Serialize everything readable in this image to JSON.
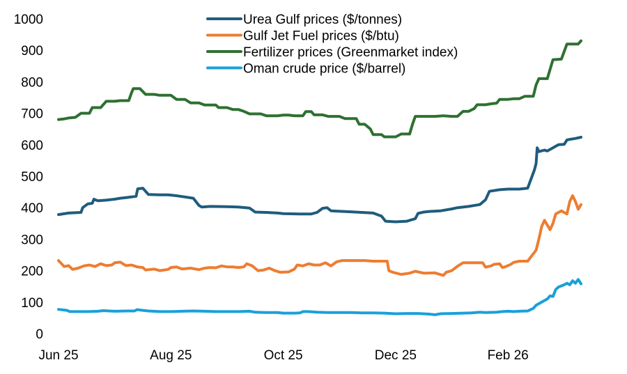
{
  "chart_data": {
    "type": "line",
    "title": "",
    "xlabel": "",
    "ylabel": "",
    "ylim": [
      0,
      1000
    ],
    "yticks": [
      0,
      100,
      200,
      300,
      400,
      500,
      600,
      700,
      800,
      900,
      1000
    ],
    "xlim_months": [
      0,
      9.3
    ],
    "xticks": [
      {
        "label": "Jun 25",
        "month": 0
      },
      {
        "label": "Aug 25",
        "month": 2
      },
      {
        "label": "Oct 25",
        "month": 4
      },
      {
        "label": "Dec 25",
        "month": 6
      },
      {
        "label": "Feb 26",
        "month": 8
      }
    ],
    "legend_position": "top-center",
    "series": [
      {
        "name": "Urea Gulf prices ($/tonnes)",
        "color": "#1f5c7d",
        "points": [
          [
            0,
            378
          ],
          [
            0.18,
            383
          ],
          [
            0.4,
            385
          ],
          [
            0.43,
            400
          ],
          [
            0.52,
            412
          ],
          [
            0.6,
            414
          ],
          [
            0.63,
            427
          ],
          [
            0.7,
            422
          ],
          [
            0.85,
            424
          ],
          [
            1.0,
            427
          ],
          [
            1.1,
            430
          ],
          [
            1.2,
            432
          ],
          [
            1.38,
            436
          ],
          [
            1.41,
            460
          ],
          [
            1.5,
            462
          ],
          [
            1.6,
            442
          ],
          [
            1.8,
            441
          ],
          [
            1.95,
            441
          ],
          [
            2.1,
            438
          ],
          [
            2.25,
            434
          ],
          [
            2.4,
            430
          ],
          [
            2.5,
            407
          ],
          [
            2.55,
            402
          ],
          [
            2.7,
            404
          ],
          [
            3.0,
            403
          ],
          [
            3.2,
            402
          ],
          [
            3.4,
            399
          ],
          [
            3.5,
            386
          ],
          [
            3.7,
            385
          ],
          [
            3.9,
            383
          ],
          [
            4.0,
            381
          ],
          [
            4.3,
            380
          ],
          [
            4.5,
            380
          ],
          [
            4.6,
            385
          ],
          [
            4.7,
            398
          ],
          [
            4.78,
            400
          ],
          [
            4.85,
            390
          ],
          [
            5.2,
            387
          ],
          [
            5.4,
            385
          ],
          [
            5.6,
            383
          ],
          [
            5.75,
            373
          ],
          [
            5.82,
            357
          ],
          [
            6.0,
            355
          ],
          [
            6.2,
            357
          ],
          [
            6.35,
            365
          ],
          [
            6.4,
            382
          ],
          [
            6.5,
            386
          ],
          [
            6.6,
            388
          ],
          [
            6.8,
            390
          ],
          [
            7.0,
            396
          ],
          [
            7.1,
            400
          ],
          [
            7.3,
            404
          ],
          [
            7.5,
            410
          ],
          [
            7.6,
            425
          ],
          [
            7.67,
            452
          ],
          [
            7.85,
            457
          ],
          [
            8.0,
            459
          ],
          [
            8.2,
            459
          ],
          [
            8.35,
            462
          ],
          [
            8.47,
            520
          ],
          [
            8.5,
            540
          ],
          [
            8.52,
            590
          ],
          [
            8.55,
            578
          ],
          [
            8.65,
            583
          ],
          [
            8.7,
            580
          ],
          [
            8.8,
            590
          ],
          [
            8.9,
            600
          ],
          [
            9.0,
            601
          ],
          [
            9.05,
            615
          ],
          [
            9.1,
            617
          ],
          [
            9.2,
            620
          ],
          [
            9.3,
            624
          ]
        ]
      },
      {
        "name": "Gulf Jet Fuel prices ($/btu)",
        "color": "#ed7d31",
        "points": [
          [
            0,
            232
          ],
          [
            0.1,
            213
          ],
          [
            0.18,
            216
          ],
          [
            0.25,
            204
          ],
          [
            0.35,
            208
          ],
          [
            0.45,
            215
          ],
          [
            0.55,
            218
          ],
          [
            0.65,
            213
          ],
          [
            0.75,
            222
          ],
          [
            0.85,
            216
          ],
          [
            0.95,
            218
          ],
          [
            1.0,
            225
          ],
          [
            1.1,
            227
          ],
          [
            1.2,
            216
          ],
          [
            1.3,
            218
          ],
          [
            1.4,
            212
          ],
          [
            1.5,
            210
          ],
          [
            1.55,
            202
          ],
          [
            1.7,
            205
          ],
          [
            1.8,
            200
          ],
          [
            1.95,
            204
          ],
          [
            2.0,
            210
          ],
          [
            2.1,
            212
          ],
          [
            2.2,
            205
          ],
          [
            2.35,
            208
          ],
          [
            2.5,
            203
          ],
          [
            2.6,
            208
          ],
          [
            2.7,
            210
          ],
          [
            2.8,
            209
          ],
          [
            2.9,
            215
          ],
          [
            3.0,
            212
          ],
          [
            3.1,
            212
          ],
          [
            3.2,
            210
          ],
          [
            3.3,
            212
          ],
          [
            3.35,
            222
          ],
          [
            3.45,
            215
          ],
          [
            3.55,
            200
          ],
          [
            3.65,
            202
          ],
          [
            3.75,
            208
          ],
          [
            3.85,
            200
          ],
          [
            3.95,
            195
          ],
          [
            4.1,
            196
          ],
          [
            4.2,
            205
          ],
          [
            4.25,
            218
          ],
          [
            4.35,
            215
          ],
          [
            4.45,
            222
          ],
          [
            4.55,
            218
          ],
          [
            4.65,
            218
          ],
          [
            4.75,
            225
          ],
          [
            4.85,
            215
          ],
          [
            4.95,
            228
          ],
          [
            5.05,
            232
          ],
          [
            5.2,
            232
          ],
          [
            5.45,
            232
          ],
          [
            5.6,
            230
          ],
          [
            5.85,
            230
          ],
          [
            5.88,
            200
          ],
          [
            5.95,
            195
          ],
          [
            6.1,
            188
          ],
          [
            6.25,
            192
          ],
          [
            6.35,
            198
          ],
          [
            6.5,
            192
          ],
          [
            6.7,
            193
          ],
          [
            6.85,
            185
          ],
          [
            6.9,
            195
          ],
          [
            7.0,
            200
          ],
          [
            7.1,
            214
          ],
          [
            7.2,
            225
          ],
          [
            7.4,
            225
          ],
          [
            7.55,
            225
          ],
          [
            7.6,
            211
          ],
          [
            7.7,
            215
          ],
          [
            7.75,
            220
          ],
          [
            7.85,
            222
          ],
          [
            7.9,
            210
          ],
          [
            7.95,
            212
          ],
          [
            8.05,
            220
          ],
          [
            8.1,
            226
          ],
          [
            8.2,
            230
          ],
          [
            8.35,
            230
          ],
          [
            8.5,
            265
          ],
          [
            8.55,
            300
          ],
          [
            8.6,
            340
          ],
          [
            8.65,
            360
          ],
          [
            8.7,
            345
          ],
          [
            8.75,
            330
          ],
          [
            8.8,
            350
          ],
          [
            8.85,
            380
          ],
          [
            8.95,
            390
          ],
          [
            9.05,
            380
          ],
          [
            9.1,
            420
          ],
          [
            9.15,
            438
          ],
          [
            9.2,
            420
          ],
          [
            9.25,
            395
          ],
          [
            9.3,
            410
          ]
        ]
      },
      {
        "name": "Fertilizer prices (Greenmarket index)",
        "color": "#2e7031",
        "points": [
          [
            0,
            680
          ],
          [
            0.1,
            682
          ],
          [
            0.18,
            685
          ],
          [
            0.3,
            687
          ],
          [
            0.4,
            700
          ],
          [
            0.55,
            700
          ],
          [
            0.6,
            718
          ],
          [
            0.75,
            718
          ],
          [
            0.85,
            738
          ],
          [
            1.0,
            738
          ],
          [
            1.1,
            740
          ],
          [
            1.25,
            740
          ],
          [
            1.3,
            765
          ],
          [
            1.33,
            778
          ],
          [
            1.45,
            778
          ],
          [
            1.55,
            760
          ],
          [
            1.7,
            760
          ],
          [
            1.8,
            757
          ],
          [
            2.0,
            757
          ],
          [
            2.1,
            744
          ],
          [
            2.25,
            744
          ],
          [
            2.35,
            733
          ],
          [
            2.5,
            733
          ],
          [
            2.6,
            726
          ],
          [
            2.8,
            726
          ],
          [
            2.85,
            718
          ],
          [
            3.0,
            718
          ],
          [
            3.1,
            712
          ],
          [
            3.2,
            712
          ],
          [
            3.3,
            706
          ],
          [
            3.4,
            698
          ],
          [
            3.6,
            698
          ],
          [
            3.7,
            692
          ],
          [
            3.9,
            692
          ],
          [
            4.0,
            694
          ],
          [
            4.1,
            694
          ],
          [
            4.2,
            692
          ],
          [
            4.35,
            692
          ],
          [
            4.4,
            705
          ],
          [
            4.5,
            705
          ],
          [
            4.55,
            695
          ],
          [
            4.7,
            695
          ],
          [
            4.8,
            690
          ],
          [
            5.0,
            690
          ],
          [
            5.1,
            683
          ],
          [
            5.3,
            683
          ],
          [
            5.35,
            665
          ],
          [
            5.45,
            665
          ],
          [
            5.55,
            650
          ],
          [
            5.6,
            632
          ],
          [
            5.75,
            632
          ],
          [
            5.8,
            625
          ],
          [
            6.0,
            625
          ],
          [
            6.1,
            634
          ],
          [
            6.25,
            634
          ],
          [
            6.3,
            665
          ],
          [
            6.35,
            690
          ],
          [
            6.5,
            690
          ],
          [
            6.7,
            690
          ],
          [
            6.85,
            692
          ],
          [
            7.0,
            690
          ],
          [
            7.1,
            690
          ],
          [
            7.2,
            706
          ],
          [
            7.3,
            706
          ],
          [
            7.4,
            715
          ],
          [
            7.45,
            727
          ],
          [
            7.6,
            727
          ],
          [
            7.7,
            730
          ],
          [
            7.8,
            732
          ],
          [
            7.85,
            744
          ],
          [
            8.0,
            744
          ],
          [
            8.1,
            746
          ],
          [
            8.2,
            746
          ],
          [
            8.3,
            754
          ],
          [
            8.45,
            754
          ],
          [
            8.5,
            790
          ],
          [
            8.55,
            810
          ],
          [
            8.7,
            810
          ],
          [
            8.8,
            870
          ],
          [
            8.95,
            872
          ],
          [
            9.05,
            920
          ],
          [
            9.25,
            920
          ],
          [
            9.3,
            930
          ]
        ]
      },
      {
        "name": "Oman crude price ($/barrel)",
        "color": "#1aa0d9",
        "points": [
          [
            0,
            77
          ],
          [
            0.15,
            74
          ],
          [
            0.2,
            70
          ],
          [
            0.3,
            70
          ],
          [
            0.5,
            70
          ],
          [
            0.7,
            71
          ],
          [
            0.8,
            73
          ],
          [
            0.9,
            72
          ],
          [
            1.0,
            71
          ],
          [
            1.2,
            72
          ],
          [
            1.35,
            72
          ],
          [
            1.4,
            76
          ],
          [
            1.5,
            74
          ],
          [
            1.6,
            72
          ],
          [
            1.8,
            70
          ],
          [
            2.0,
            70
          ],
          [
            2.2,
            71
          ],
          [
            2.4,
            72
          ],
          [
            2.6,
            71
          ],
          [
            2.8,
            70
          ],
          [
            3.0,
            70
          ],
          [
            3.2,
            70
          ],
          [
            3.4,
            71
          ],
          [
            3.5,
            68
          ],
          [
            3.7,
            67
          ],
          [
            3.9,
            67
          ],
          [
            4.0,
            65
          ],
          [
            4.2,
            65
          ],
          [
            4.3,
            66
          ],
          [
            4.35,
            70
          ],
          [
            4.45,
            70
          ],
          [
            4.6,
            68
          ],
          [
            4.8,
            67
          ],
          [
            5.0,
            67
          ],
          [
            5.2,
            67
          ],
          [
            5.4,
            66
          ],
          [
            5.6,
            66
          ],
          [
            5.8,
            65
          ],
          [
            6.0,
            63
          ],
          [
            6.2,
            64
          ],
          [
            6.4,
            64
          ],
          [
            6.6,
            62
          ],
          [
            6.7,
            60
          ],
          [
            6.8,
            63
          ],
          [
            7.0,
            64
          ],
          [
            7.2,
            65
          ],
          [
            7.35,
            66
          ],
          [
            7.5,
            68
          ],
          [
            7.6,
            67
          ],
          [
            7.8,
            68
          ],
          [
            7.9,
            70
          ],
          [
            8.0,
            71
          ],
          [
            8.1,
            70
          ],
          [
            8.2,
            71
          ],
          [
            8.35,
            72
          ],
          [
            8.45,
            80
          ],
          [
            8.5,
            90
          ],
          [
            8.6,
            100
          ],
          [
            8.7,
            110
          ],
          [
            8.75,
            120
          ],
          [
            8.8,
            118
          ],
          [
            8.85,
            140
          ],
          [
            8.9,
            148
          ],
          [
            9.0,
            155
          ],
          [
            9.05,
            160
          ],
          [
            9.1,
            155
          ],
          [
            9.15,
            168
          ],
          [
            9.2,
            160
          ],
          [
            9.25,
            172
          ],
          [
            9.3,
            158
          ]
        ]
      }
    ]
  }
}
